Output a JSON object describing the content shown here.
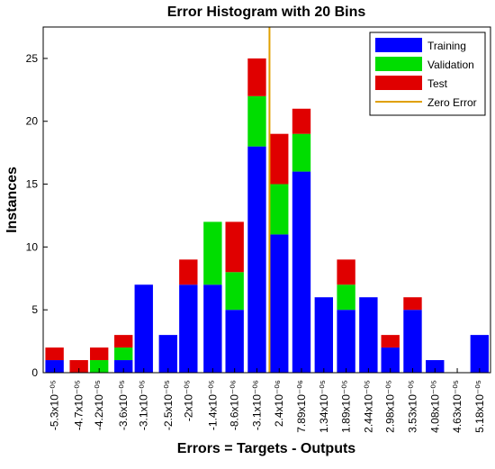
{
  "chart_data": {
    "type": "stacked_histogram",
    "title": "Error Histogram with 20 Bins",
    "xlabel": "Errors = Targets - Outputs",
    "ylabel": "Instances",
    "xlim": [
      -5.58e-05,
      5.45e-05
    ],
    "xticks": [
      {
        "value": -5.3e-05,
        "label": "-5.3x10⁻⁰⁵"
      },
      {
        "value": -4.7e-05,
        "label": "-4.7x10⁻⁰⁵"
      },
      {
        "value": -4.2e-05,
        "label": "-4.2x10⁻⁰⁵"
      },
      {
        "value": -3.6e-05,
        "label": "-3.6x10⁻⁰⁵"
      },
      {
        "value": -3.1e-05,
        "label": "-3.1x10⁻⁰⁵"
      },
      {
        "value": -2.5e-05,
        "label": "-2.5x10⁻⁰⁵"
      },
      {
        "value": -2e-05,
        "label": "-2x10⁻⁰⁵"
      },
      {
        "value": -1.4e-05,
        "label": "-1.4x10⁻⁰⁵"
      },
      {
        "value": -8.6e-06,
        "label": "-8.6x10⁻⁰⁶"
      },
      {
        "value": -3.1e-06,
        "label": "-3.1x10⁻⁰⁶"
      },
      {
        "value": 2.4e-06,
        "label": "2.4x10⁻⁰⁶"
      },
      {
        "value": 7.89e-06,
        "label": "7.89x10⁻⁰⁶"
      },
      {
        "value": 1.34e-05,
        "label": "1.34x10⁻⁰⁵"
      },
      {
        "value": 1.89e-05,
        "label": "1.89x10⁻⁰⁵"
      },
      {
        "value": 2.44e-05,
        "label": "2.44x10⁻⁰⁵"
      },
      {
        "value": 2.98e-05,
        "label": "2.98x10⁻⁰⁵"
      },
      {
        "value": 3.53e-05,
        "label": "3.53x10⁻⁰⁵"
      },
      {
        "value": 4.08e-05,
        "label": "4.08x10⁻⁰⁵"
      },
      {
        "value": 4.63e-05,
        "label": "4.63x10⁻⁰⁵"
      },
      {
        "value": 5.18e-05,
        "label": "5.18x10⁻⁰⁵"
      }
    ],
    "ylim": [
      0,
      27.5
    ],
    "yticks": [
      0,
      5,
      10,
      15,
      20,
      25
    ],
    "series": [
      {
        "name": "Training",
        "color": "#0000ff",
        "values": [
          1,
          0,
          0,
          1,
          7,
          3,
          7,
          7,
          5,
          18,
          11,
          16,
          6,
          5,
          6,
          2,
          5,
          1,
          0,
          3
        ]
      },
      {
        "name": "Validation",
        "color": "#00dd00",
        "values": [
          0,
          0,
          1,
          1,
          0,
          0,
          0,
          5,
          3,
          4,
          4,
          3,
          0,
          2,
          0,
          0,
          0,
          0,
          0,
          0
        ]
      },
      {
        "name": "Test",
        "color": "#e00000",
        "values": [
          1,
          1,
          1,
          1,
          0,
          0,
          2,
          0,
          4,
          3,
          4,
          2,
          0,
          2,
          0,
          1,
          1,
          0,
          0,
          0
        ]
      }
    ],
    "reference_line": {
      "name": "Zero Error",
      "color": "#e0a000",
      "value": 0
    },
    "legend": "upper right"
  }
}
